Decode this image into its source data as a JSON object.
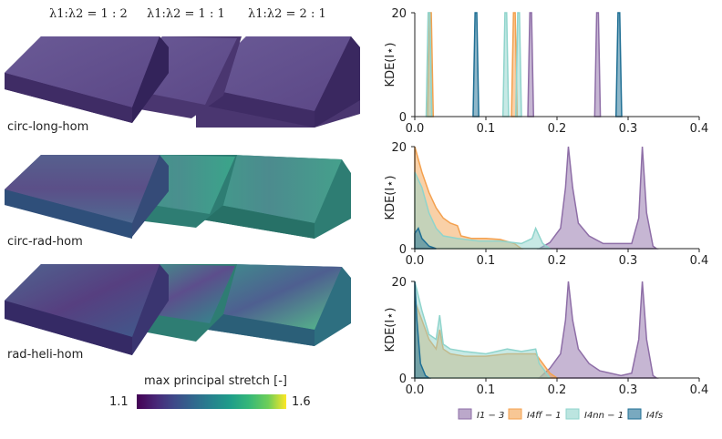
{
  "left_panel": {
    "column_ratios": [
      "λ1:λ2 = 1 : 2",
      "λ1:λ2 = 1 : 1",
      "λ1:λ2 = 2 : 1"
    ],
    "row_labels": [
      "circ-long-hom",
      "circ-rad-hom",
      "rad-heli-hom"
    ],
    "colorbar": {
      "title": "max principal stretch [-]",
      "min_label": "1.1",
      "max_label": "1.6",
      "colormap": "viridis"
    }
  },
  "chart_data": [
    {
      "type": "area",
      "panel": "circ-long-hom",
      "ylabel": "KDE(I⋆)",
      "xlim": [
        0,
        0.4
      ],
      "ylim": [
        0,
        20
      ],
      "xticks": [
        "0.0",
        "0.1",
        "0.2",
        "0.3",
        "0.4"
      ],
      "yticks": [
        "0",
        "20"
      ],
      "series": [
        {
          "name": "I1 − 3",
          "color": "#8e6ea7",
          "peaks": [
            {
              "x": 0.163,
              "height": 20
            },
            {
              "x": 0.257,
              "height": 20
            }
          ]
        },
        {
          "name": "I4ff − 1",
          "color": "#f4a14f",
          "peaks": [
            {
              "x": 0.022,
              "height": 20
            },
            {
              "x": 0.14,
              "height": 20
            }
          ]
        },
        {
          "name": "I4nn − 1",
          "color": "#8fd4cc",
          "peaks": [
            {
              "x": 0.02,
              "height": 20
            },
            {
              "x": 0.128,
              "height": 20
            },
            {
              "x": 0.146,
              "height": 20
            }
          ]
        },
        {
          "name": "I4fs",
          "color": "#1f6f94",
          "peaks": [
            {
              "x": 0.086,
              "height": 20
            },
            {
              "x": 0.287,
              "height": 20
            }
          ]
        }
      ]
    },
    {
      "type": "area",
      "panel": "circ-rad-hom",
      "ylabel": "KDE(I⋆)",
      "xlim": [
        0,
        0.4
      ],
      "ylim": [
        0,
        20
      ],
      "xticks": [
        "0.0",
        "0.1",
        "0.2",
        "0.3",
        "0.4"
      ],
      "yticks": [
        "0",
        "20"
      ],
      "series": [
        {
          "name": "I1 − 3",
          "color": "#8e6ea7",
          "points": [
            [
              0.175,
              0
            ],
            [
              0.19,
              1.2
            ],
            [
              0.205,
              4
            ],
            [
              0.212,
              12
            ],
            [
              0.216,
              20
            ],
            [
              0.222,
              12
            ],
            [
              0.23,
              5
            ],
            [
              0.245,
              2.5
            ],
            [
              0.265,
              1
            ],
            [
              0.305,
              1
            ],
            [
              0.315,
              6
            ],
            [
              0.32,
              20
            ],
            [
              0.326,
              7
            ],
            [
              0.335,
              0.5
            ],
            [
              0.34,
              0
            ]
          ]
        },
        {
          "name": "I4ff − 1",
          "color": "#f4a14f",
          "points": [
            [
              0,
              20
            ],
            [
              0.01,
              15
            ],
            [
              0.02,
              11
            ],
            [
              0.03,
              8
            ],
            [
              0.04,
              6
            ],
            [
              0.05,
              5
            ],
            [
              0.06,
              4.5
            ],
            [
              0.065,
              2.5
            ],
            [
              0.08,
              2
            ],
            [
              0.1,
              2
            ],
            [
              0.12,
              1.8
            ],
            [
              0.14,
              1
            ],
            [
              0.15,
              0
            ]
          ]
        },
        {
          "name": "I4nn − 1",
          "color": "#8fd4cc",
          "points": [
            [
              0,
              15
            ],
            [
              0.01,
              12
            ],
            [
              0.02,
              7
            ],
            [
              0.03,
              4
            ],
            [
              0.04,
              2.5
            ],
            [
              0.06,
              2
            ],
            [
              0.09,
              1.5
            ],
            [
              0.12,
              1.5
            ],
            [
              0.15,
              1
            ],
            [
              0.165,
              2
            ],
            [
              0.17,
              4
            ],
            [
              0.18,
              1
            ],
            [
              0.19,
              0
            ]
          ]
        },
        {
          "name": "I4fs",
          "color": "#1f6f94",
          "points": [
            [
              0,
              3
            ],
            [
              0.005,
              4
            ],
            [
              0.01,
              2
            ],
            [
              0.02,
              0.5
            ],
            [
              0.03,
              0
            ]
          ]
        }
      ]
    },
    {
      "type": "area",
      "panel": "rad-heli-hom",
      "ylabel": "KDE(I⋆)",
      "xlim": [
        0,
        0.4
      ],
      "ylim": [
        0,
        20
      ],
      "xticks": [
        "0.0",
        "0.1",
        "0.2",
        "0.3",
        "0.4"
      ],
      "yticks": [
        "0",
        "20"
      ],
      "series": [
        {
          "name": "I1 − 3",
          "color": "#8e6ea7",
          "points": [
            [
              0.175,
              0
            ],
            [
              0.19,
              2
            ],
            [
              0.205,
              5
            ],
            [
              0.212,
              12
            ],
            [
              0.216,
              20
            ],
            [
              0.222,
              12
            ],
            [
              0.23,
              6
            ],
            [
              0.245,
              3
            ],
            [
              0.26,
              1.5
            ],
            [
              0.29,
              0.5
            ],
            [
              0.305,
              1
            ],
            [
              0.315,
              8
            ],
            [
              0.32,
              20
            ],
            [
              0.326,
              8
            ],
            [
              0.335,
              0.5
            ],
            [
              0.34,
              0
            ]
          ]
        },
        {
          "name": "I4ff − 1",
          "color": "#f4a14f",
          "points": [
            [
              0,
              16
            ],
            [
              0.01,
              12
            ],
            [
              0.02,
              8
            ],
            [
              0.03,
              6
            ],
            [
              0.035,
              10
            ],
            [
              0.04,
              6
            ],
            [
              0.05,
              5
            ],
            [
              0.07,
              4.5
            ],
            [
              0.1,
              4.5
            ],
            [
              0.13,
              5
            ],
            [
              0.15,
              5
            ],
            [
              0.17,
              5
            ],
            [
              0.18,
              3
            ],
            [
              0.19,
              1
            ],
            [
              0.2,
              0
            ]
          ]
        },
        {
          "name": "I4nn − 1",
          "color": "#8fd4cc",
          "points": [
            [
              0,
              20
            ],
            [
              0.01,
              14
            ],
            [
              0.02,
              9
            ],
            [
              0.03,
              8
            ],
            [
              0.035,
              13
            ],
            [
              0.04,
              7
            ],
            [
              0.05,
              6
            ],
            [
              0.07,
              5.5
            ],
            [
              0.1,
              5
            ],
            [
              0.13,
              6
            ],
            [
              0.15,
              5.5
            ],
            [
              0.17,
              6
            ],
            [
              0.175,
              3
            ],
            [
              0.19,
              0
            ]
          ]
        },
        {
          "name": "I4fs",
          "color": "#1f6f94",
          "points": [
            [
              0,
              20
            ],
            [
              0.003,
              12
            ],
            [
              0.008,
              3
            ],
            [
              0.015,
              0.5
            ],
            [
              0.02,
              0
            ]
          ]
        }
      ]
    }
  ],
  "legend": {
    "items": [
      {
        "label": "I1 − 3",
        "color": "#8e6ea7"
      },
      {
        "label": "I4ff − 1",
        "color": "#f4a14f"
      },
      {
        "label": "I4nn − 1",
        "color": "#8fd4cc"
      },
      {
        "label": "I4fs",
        "color": "#1f6f94"
      }
    ]
  }
}
